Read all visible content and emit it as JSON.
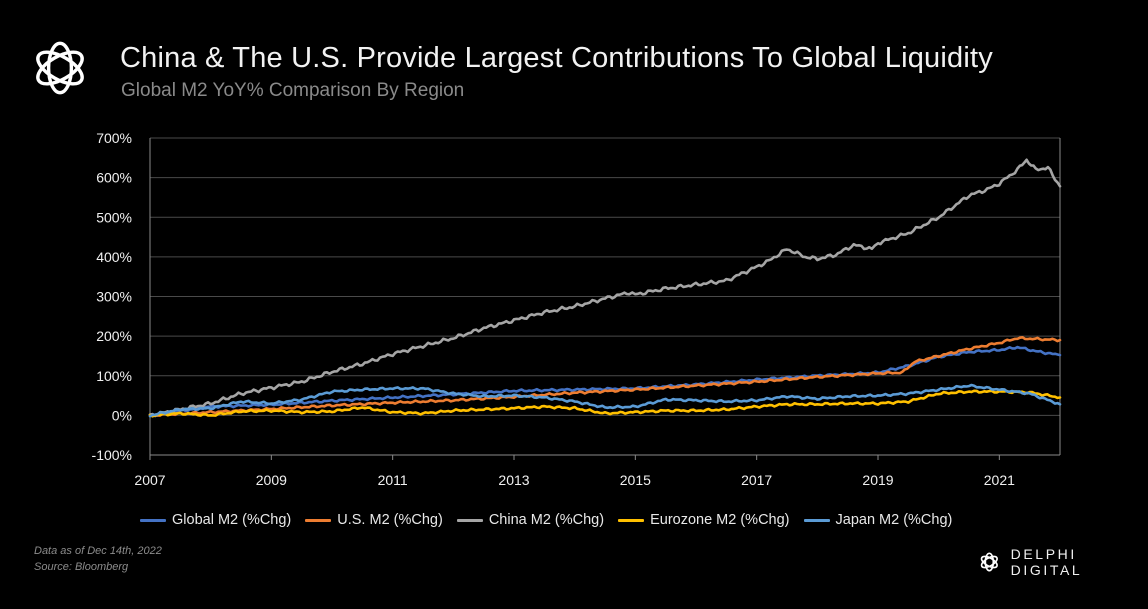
{
  "header": {
    "title": "China & The U.S. Provide Largest Contributions To Global Liquidity",
    "subtitle": "Global M2 YoY% Comparison By Region"
  },
  "footer": {
    "note": "Data as of Dec 14th, 2022",
    "source": "Source: Bloomberg",
    "brand": "DELPHI DIGITAL"
  },
  "colors": {
    "background": "#000000",
    "grid": "#4a4a4a",
    "global": "#4472c4",
    "us": "#ed7d31",
    "china": "#a5a5a5",
    "eurozone": "#ffc000",
    "japan": "#5b9bd5"
  },
  "chart_data": {
    "type": "line",
    "title": "China & The U.S. Provide Largest Contributions To Global Liquidity",
    "subtitle": "Global M2 YoY% Comparison By Region",
    "xlabel": "",
    "ylabel": "",
    "xlim": [
      2007,
      2022
    ],
    "ylim": [
      -100,
      700
    ],
    "y_ticks": [
      "-100%",
      "0%",
      "100%",
      "200%",
      "300%",
      "400%",
      "500%",
      "600%",
      "700%"
    ],
    "x_ticks": [
      "2007",
      "2009",
      "2011",
      "2013",
      "2015",
      "2017",
      "2019",
      "2021"
    ],
    "grid": true,
    "legend_position": "bottom",
    "series": [
      {
        "name": "Global M2 (%Chg)",
        "color": "#4472c4",
        "x": [
          2007,
          2008,
          2009,
          2010,
          2011,
          2012,
          2013,
          2014,
          2015,
          2016,
          2017,
          2018,
          2019,
          2019.5,
          2020,
          2020.5,
          2021,
          2021.3,
          2021.6,
          2022
        ],
        "y": [
          0,
          22,
          27,
          37,
          45,
          53,
          62,
          65,
          68,
          78,
          90,
          100,
          108,
          125,
          148,
          160,
          165,
          172,
          162,
          152
        ]
      },
      {
        "name": "U.S. M2 (%Chg)",
        "color": "#ed7d31",
        "x": [
          2007,
          2008,
          2009,
          2010,
          2011,
          2012,
          2013,
          2014,
          2015,
          2016,
          2017,
          2018,
          2019,
          2019.4,
          2019.6,
          2020,
          2020.5,
          2021,
          2021.3,
          2022
        ],
        "y": [
          0,
          8,
          16,
          25,
          32,
          38,
          47,
          57,
          65,
          75,
          85,
          97,
          106,
          108,
          135,
          150,
          168,
          183,
          195,
          190
        ]
      },
      {
        "name": "China M2 (%Chg)",
        "color": "#a5a5a5",
        "x": [
          2007,
          2007.5,
          2008,
          2008.5,
          2009,
          2009.5,
          2010,
          2010.5,
          2011,
          2011.5,
          2012,
          2012.5,
          2013,
          2013.5,
          2014,
          2014.5,
          2014.9,
          2015,
          2015.5,
          2016,
          2016.5,
          2017,
          2017.2,
          2017.5,
          2017.8,
          2018,
          2018.3,
          2018.6,
          2018.9,
          2019,
          2019.5,
          2020,
          2020.5,
          2020.8,
          2021,
          2021.3,
          2021.45,
          2021.6,
          2021.8,
          2022
        ],
        "y": [
          0,
          15,
          30,
          55,
          70,
          85,
          110,
          130,
          155,
          175,
          195,
          220,
          240,
          260,
          275,
          295,
          310,
          305,
          320,
          330,
          340,
          375,
          390,
          420,
          400,
          395,
          405,
          430,
          420,
          435,
          460,
          500,
          555,
          570,
          585,
          620,
          645,
          620,
          625,
          578
        ]
      },
      {
        "name": "Eurozone M2 (%Chg)",
        "color": "#ffc000",
        "x": [
          2007,
          2007.5,
          2008,
          2008.5,
          2009,
          2009.5,
          2010,
          2010.5,
          2011,
          2011.5,
          2012,
          2012.5,
          2013,
          2013.5,
          2014,
          2014.5,
          2015,
          2015.5,
          2016,
          2016.5,
          2017,
          2017.5,
          2018,
          2018.5,
          2019,
          2019.5,
          2020,
          2020.5,
          2021,
          2021.5,
          2022
        ],
        "y": [
          0,
          5,
          0,
          10,
          12,
          8,
          10,
          20,
          8,
          5,
          12,
          15,
          18,
          22,
          18,
          5,
          8,
          12,
          12,
          15,
          22,
          28,
          28,
          30,
          30,
          35,
          55,
          60,
          60,
          58,
          45
        ]
      },
      {
        "name": "Japan M2 (%Chg)",
        "color": "#5b9bd5",
        "x": [
          2007,
          2007.5,
          2008,
          2008.5,
          2009,
          2009.5,
          2010,
          2010.5,
          2011,
          2011.5,
          2012,
          2012.5,
          2013,
          2013.5,
          2014,
          2014.5,
          2015,
          2015.5,
          2016,
          2016.5,
          2017,
          2017.5,
          2018,
          2018.5,
          2019,
          2019.5,
          2020,
          2020.5,
          2021,
          2021.5,
          2022
        ],
        "y": [
          0,
          15,
          18,
          35,
          30,
          40,
          60,
          65,
          68,
          68,
          55,
          48,
          50,
          45,
          35,
          20,
          22,
          40,
          38,
          35,
          38,
          48,
          42,
          48,
          50,
          55,
          65,
          75,
          65,
          55,
          28
        ]
      }
    ]
  }
}
